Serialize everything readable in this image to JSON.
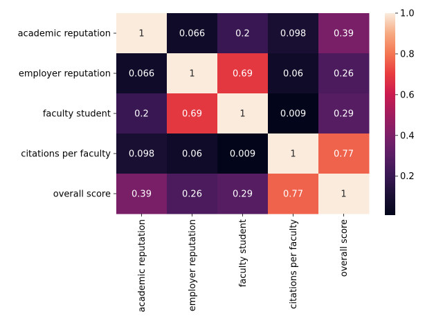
{
  "chart_data": {
    "type": "heatmap",
    "title": "",
    "xlabel": "",
    "ylabel": "",
    "rows": [
      "academic reputation",
      "employer reputation",
      "faculty student",
      "citations per faculty",
      "overall score"
    ],
    "cols": [
      "academic reputation",
      "employer reputation",
      "faculty student",
      "citations per faculty",
      "overall score"
    ],
    "values": [
      [
        1,
        0.066,
        0.2,
        0.098,
        0.39
      ],
      [
        0.066,
        1,
        0.69,
        0.06,
        0.26
      ],
      [
        0.2,
        0.69,
        1,
        0.009,
        0.29
      ],
      [
        0.098,
        0.06,
        0.009,
        1,
        0.77
      ],
      [
        0.39,
        0.26,
        0.29,
        0.77,
        1
      ]
    ],
    "cell_labels": [
      [
        "1",
        "0.066",
        "0.2",
        "0.098",
        "0.39"
      ],
      [
        "0.066",
        "1",
        "0.69",
        "0.06",
        "0.26"
      ],
      [
        "0.2",
        "0.69",
        "1",
        "0.009",
        "0.29"
      ],
      [
        "0.098",
        "0.06",
        "0.009",
        "1",
        "0.77"
      ],
      [
        "0.39",
        "0.26",
        "0.29",
        "0.77",
        "1"
      ]
    ],
    "colorbar": {
      "range": [
        0.009,
        1
      ],
      "ticks": [
        0.2,
        0.4,
        0.6,
        0.8,
        1.0
      ],
      "tick_labels": [
        "0.2",
        "0.4",
        "0.6",
        "0.8",
        "1.0"
      ]
    },
    "colormap": "rocket",
    "grid": false,
    "legend": "colorbar-right"
  }
}
